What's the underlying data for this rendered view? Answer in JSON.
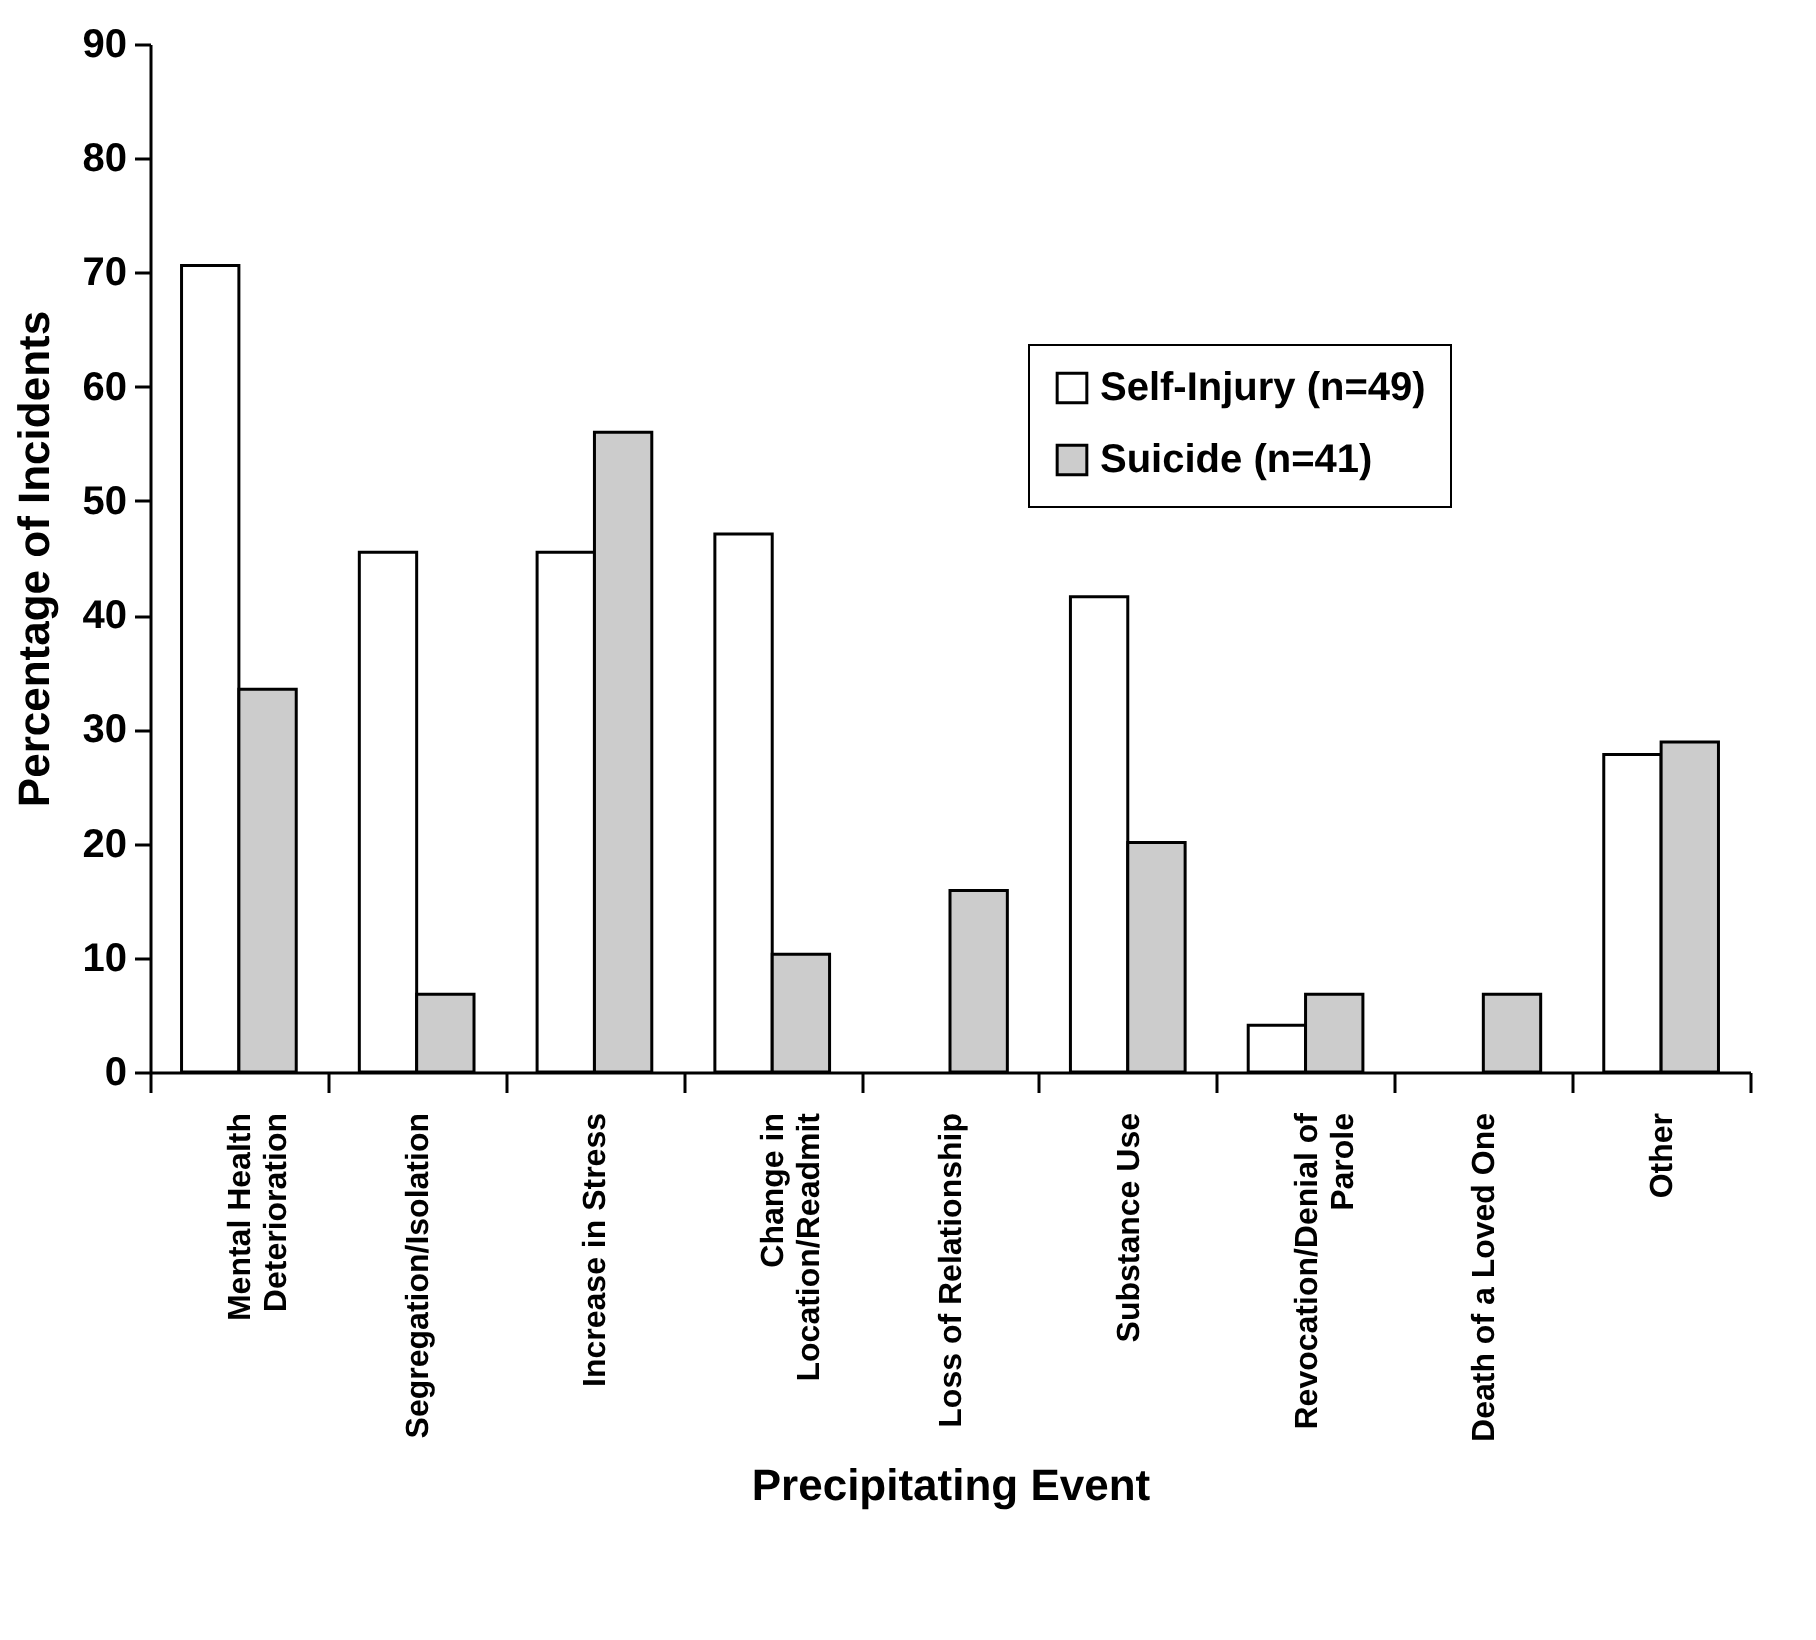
{
  "chart_data": {
    "type": "bar",
    "xlabel": "Precipitating Event",
    "ylabel": "Percentage of Incidents",
    "categories": [
      "Mental Health Deterioration",
      "Segregation/Isolation",
      "Increase in Stress",
      "Change in Location/Readmit",
      "Loss of Relationship",
      "Substance Use",
      "Revocation/Denial of Parole",
      "Death of a Loved One",
      "Other"
    ],
    "series": [
      {
        "name": "Self-Injury (n=49)",
        "color": "#ffffff",
        "values": [
          70.6,
          45.5,
          45.5,
          47.1,
          null,
          41.6,
          4.1,
          null,
          27.8
        ]
      },
      {
        "name": "Suicide (n=41)",
        "color": "#cccccc",
        "values": [
          33.5,
          6.8,
          56,
          10.3,
          15.9,
          20.1,
          6.8,
          6.8,
          28.9
        ]
      }
    ],
    "ylim": [
      0,
      90
    ],
    "yticks": [
      0,
      10,
      20,
      30,
      40,
      50,
      60,
      70,
      80,
      90
    ],
    "grid": false,
    "legend": "top right"
  }
}
